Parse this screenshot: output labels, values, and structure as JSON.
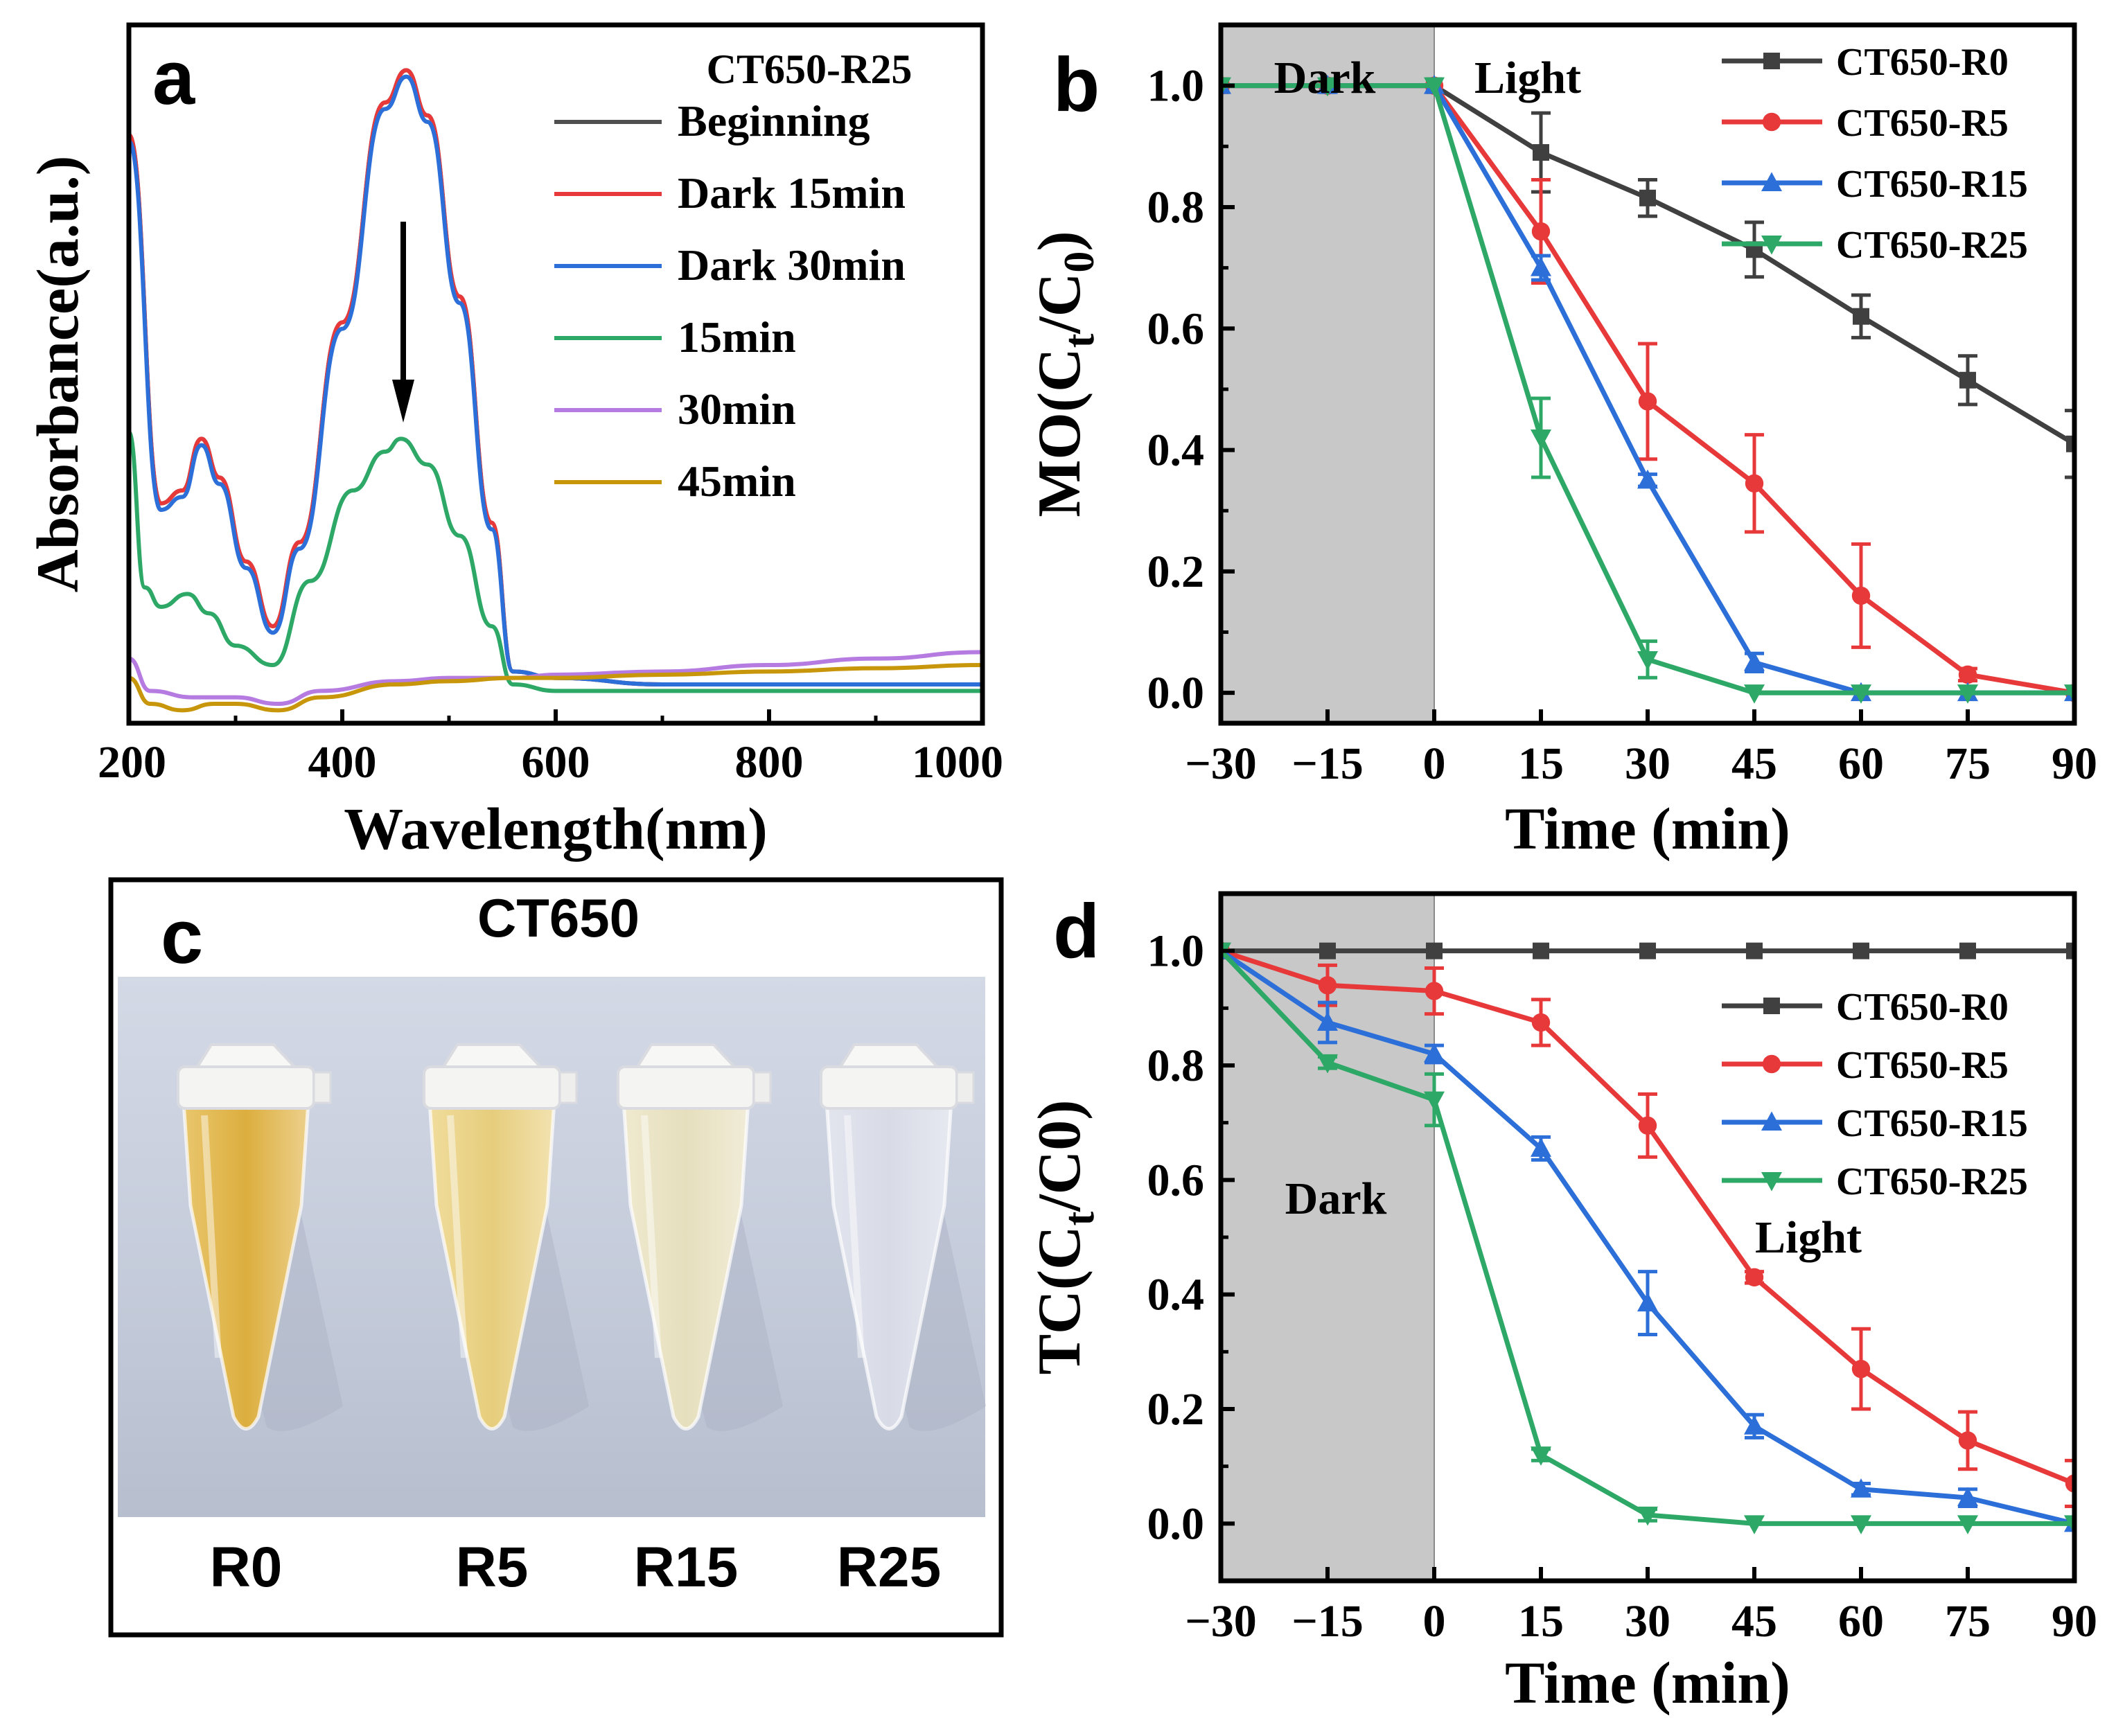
{
  "colors": {
    "R0": "#404040",
    "R5": "#e8393a",
    "R15": "#2d6fd8",
    "R25": "#2ea866",
    "Beginning": "#505050",
    "Dark 15min": "#e8393a",
    "Dark 30min": "#2d6fd8",
    "15min": "#2ea866",
    "30min": "#b57be0",
    "45min": "#c8960a",
    "dark_shade": "#c8c8c8"
  },
  "chart_data": [
    {
      "panel": "a",
      "type": "line",
      "title": "CT650-R25",
      "xlabel": "Wavelength(nm)",
      "ylabel": "Absorbance(a.u.)",
      "xlim": [
        200,
        1000
      ],
      "ylim": [
        0,
        1.08
      ],
      "xticks": [
        "200",
        "400",
        "600",
        "800",
        "1000"
      ],
      "annotation": "downward arrow",
      "series": [
        {
          "name": "Beginning",
          "x": [
            200,
            230,
            250,
            268,
            285,
            310,
            335,
            360,
            400,
            440,
            460,
            480,
            510,
            540,
            560,
            600,
            700,
            800,
            900,
            1000
          ],
          "y": [
            0.88,
            0.31,
            0.33,
            0.41,
            0.35,
            0.22,
            0.12,
            0.25,
            0.59,
            0.93,
            0.98,
            0.91,
            0.63,
            0.28,
            0.05,
            0.04,
            0.03,
            0.03,
            0.03,
            0.03
          ]
        },
        {
          "name": "Dark 15min",
          "x": [
            200,
            230,
            250,
            268,
            285,
            310,
            335,
            360,
            400,
            440,
            460,
            480,
            510,
            540,
            560,
            600,
            700,
            800,
            900,
            1000
          ],
          "y": [
            0.88,
            0.31,
            0.33,
            0.41,
            0.35,
            0.22,
            0.12,
            0.25,
            0.59,
            0.93,
            0.98,
            0.91,
            0.63,
            0.28,
            0.05,
            0.04,
            0.03,
            0.03,
            0.03,
            0.03
          ]
        },
        {
          "name": "Dark 30min",
          "x": [
            200,
            230,
            250,
            268,
            285,
            310,
            335,
            360,
            400,
            440,
            460,
            480,
            510,
            540,
            560,
            600,
            700,
            800,
            900,
            1000
          ],
          "y": [
            0.87,
            0.3,
            0.32,
            0.4,
            0.34,
            0.21,
            0.11,
            0.24,
            0.58,
            0.92,
            0.97,
            0.9,
            0.62,
            0.27,
            0.05,
            0.04,
            0.03,
            0.03,
            0.03,
            0.03
          ]
        },
        {
          "name": "15min",
          "x": [
            200,
            215,
            230,
            255,
            275,
            300,
            335,
            370,
            410,
            440,
            455,
            480,
            510,
            540,
            560,
            600,
            700,
            800,
            900,
            1000
          ],
          "y": [
            0.42,
            0.18,
            0.15,
            0.17,
            0.14,
            0.09,
            0.06,
            0.19,
            0.33,
            0.39,
            0.41,
            0.37,
            0.26,
            0.12,
            0.03,
            0.02,
            0.02,
            0.02,
            0.02,
            0.02
          ]
        },
        {
          "name": "30min",
          "x": [
            200,
            220,
            260,
            300,
            340,
            380,
            450,
            500,
            560,
            600,
            700,
            800,
            900,
            1000
          ],
          "y": [
            0.07,
            0.02,
            0.01,
            0.01,
            0.0,
            0.02,
            0.035,
            0.04,
            0.04,
            0.045,
            0.05,
            0.06,
            0.07,
            0.08
          ]
        },
        {
          "name": "45min",
          "x": [
            200,
            220,
            250,
            280,
            300,
            340,
            380,
            450,
            500,
            560,
            600,
            700,
            800,
            900,
            1000
          ],
          "y": [
            0.04,
            0.0,
            -0.01,
            0.0,
            0.0,
            -0.01,
            0.01,
            0.03,
            0.035,
            0.04,
            0.04,
            0.045,
            0.05,
            0.055,
            0.06
          ]
        }
      ]
    },
    {
      "panel": "b",
      "type": "line",
      "xlabel": "Time (min)",
      "ylabel": "MO(Ct/C0)",
      "xlim": [
        -30,
        90
      ],
      "ylim": [
        -0.05,
        1.1
      ],
      "xticks": [
        "−30",
        "−15",
        "0",
        "15",
        "30",
        "45",
        "60",
        "75",
        "90"
      ],
      "yticks": [
        "0.0",
        "0.2",
        "0.4",
        "0.6",
        "0.8",
        "1.0"
      ],
      "shaded_region": {
        "from": -30,
        "to": 0,
        "label": "Dark"
      },
      "region_labels": [
        "Dark",
        "Light"
      ],
      "x": [
        -30,
        -15,
        0,
        15,
        30,
        45,
        60,
        75,
        90
      ],
      "series": [
        {
          "name": "CT650-R0",
          "marker": "square",
          "values": [
            1.0,
            1.0,
            1.0,
            0.89,
            0.815,
            0.73,
            0.62,
            0.515,
            0.41
          ],
          "errors": [
            0,
            0,
            0,
            0.065,
            0.03,
            0.045,
            0.035,
            0.04,
            0.055
          ]
        },
        {
          "name": "CT650-R5",
          "marker": "circle",
          "values": [
            1.0,
            1.0,
            1.0,
            0.76,
            0.48,
            0.345,
            0.16,
            0.03,
            0.0
          ],
          "errors": [
            0,
            0,
            0,
            0.085,
            0.095,
            0.08,
            0.085,
            0.01,
            0
          ]
        },
        {
          "name": "CT650-R15",
          "marker": "triangle-up",
          "values": [
            1.0,
            1.0,
            1.0,
            0.7,
            0.35,
            0.05,
            0.0,
            0.0,
            0.0
          ],
          "errors": [
            0,
            0,
            0,
            0.02,
            0.01,
            0.015,
            0,
            0,
            0
          ]
        },
        {
          "name": "CT650-R25",
          "marker": "triangle-down",
          "values": [
            1.0,
            1.0,
            1.0,
            0.42,
            0.055,
            0.0,
            0.0,
            0.0,
            0.0
          ],
          "errors": [
            0,
            0,
            0,
            0.065,
            0.03,
            0,
            0,
            0,
            0
          ]
        }
      ]
    },
    {
      "panel": "d",
      "type": "line",
      "xlabel": "Time (min)",
      "ylabel": "TC(Ct/C0)",
      "xlim": [
        -30,
        90
      ],
      "ylim": [
        -0.1,
        1.1
      ],
      "xticks": [
        "−30",
        "−15",
        "0",
        "15",
        "30",
        "45",
        "60",
        "75",
        "90"
      ],
      "yticks": [
        "0.0",
        "0.2",
        "0.4",
        "0.6",
        "0.8",
        "1.0"
      ],
      "shaded_region": {
        "from": -30,
        "to": 0,
        "label": "Dark"
      },
      "region_labels": [
        "Dark",
        "Light"
      ],
      "x": [
        -30,
        -15,
        0,
        15,
        30,
        45,
        60,
        75,
        90
      ],
      "series": [
        {
          "name": "CT650-R0",
          "marker": "square",
          "values": [
            1.0,
            1.0,
            1.0,
            1.0,
            1.0,
            1.0,
            1.0,
            1.0,
            1.0
          ],
          "errors": [
            0,
            0,
            0,
            0,
            0,
            0,
            0,
            0,
            0
          ]
        },
        {
          "name": "CT650-R5",
          "marker": "circle",
          "values": [
            1.0,
            0.94,
            0.93,
            0.875,
            0.695,
            0.43,
            0.27,
            0.145,
            0.07
          ],
          "errors": [
            0,
            0.035,
            0.04,
            0.04,
            0.055,
            0.01,
            0.07,
            0.05,
            0.04
          ]
        },
        {
          "name": "CT650-R15",
          "marker": "triangle-up",
          "values": [
            1.0,
            0.875,
            0.82,
            0.655,
            0.385,
            0.17,
            0.06,
            0.045,
            0.0
          ],
          "errors": [
            0,
            0.035,
            0.015,
            0.02,
            0.055,
            0.02,
            0.01,
            0.015,
            0
          ]
        },
        {
          "name": "CT650-R25",
          "marker": "triangle-down",
          "values": [
            1.0,
            0.805,
            0.74,
            0.12,
            0.015,
            0.0,
            0.0,
            0.0,
            0.0
          ],
          "errors": [
            0,
            0.01,
            0.045,
            0.01,
            0.01,
            0,
            0,
            0,
            0
          ]
        }
      ]
    }
  ],
  "panel_c": {
    "letter": "c",
    "title": "CT650",
    "tubes": [
      "R0",
      "R5",
      "R15",
      "R25"
    ]
  }
}
